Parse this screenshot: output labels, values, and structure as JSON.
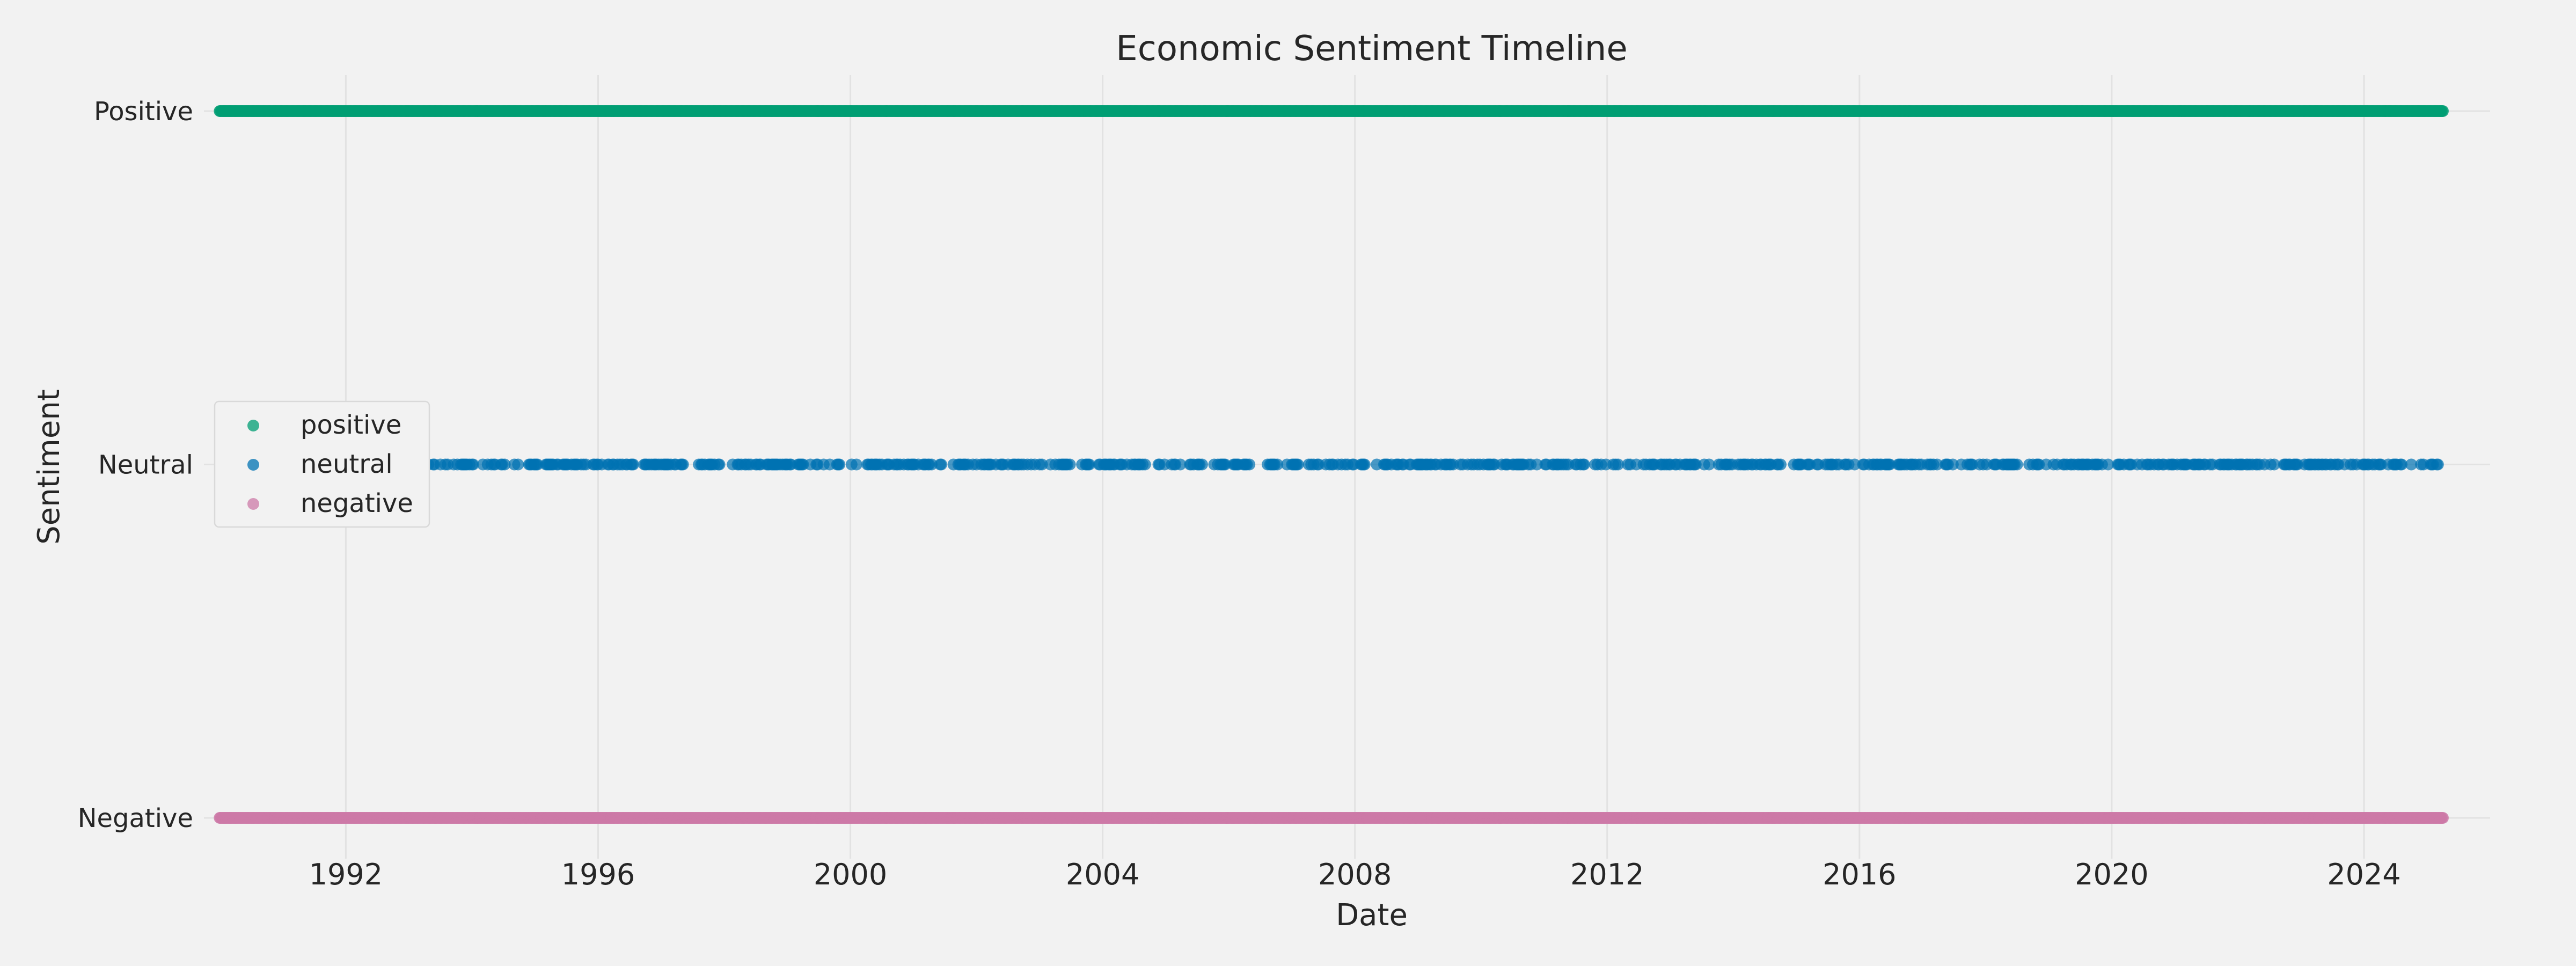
{
  "chart_data": {
    "type": "scatter",
    "title": "Economic Sentiment Timeline",
    "xlabel": "Date",
    "ylabel": "Sentiment",
    "xlim": [
      "1989-10-01",
      "2026-01-01"
    ],
    "x_ticks": [
      "1992",
      "1996",
      "2000",
      "2004",
      "2008",
      "2012",
      "2016",
      "2020",
      "2024"
    ],
    "y_categories": [
      "Negative",
      "Neutral",
      "Positive"
    ],
    "grid": true,
    "legend_position": "center-left",
    "series": [
      {
        "name": "positive",
        "y": "Positive",
        "color": "#009e73",
        "x_range": [
          "1990-01-01",
          "2025-04-01"
        ],
        "frequency": "continuous"
      },
      {
        "name": "neutral",
        "y": "Neutral",
        "color": "#0072b2",
        "x_range": [
          "1990-01-01",
          "2025-04-01"
        ],
        "frequency": "intermittent"
      },
      {
        "name": "negative",
        "y": "Negative",
        "color": "#cc79a7",
        "x_range": [
          "1990-01-01",
          "2025-04-01"
        ],
        "frequency": "continuous"
      }
    ]
  }
}
